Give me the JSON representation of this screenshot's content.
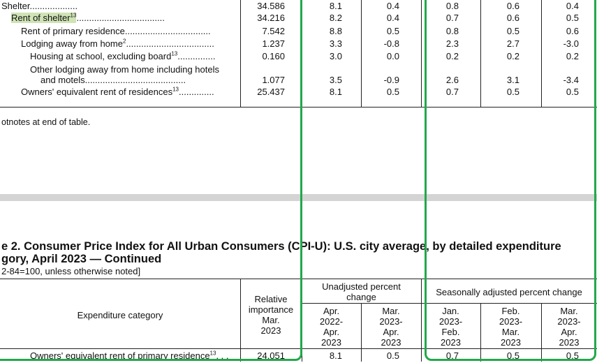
{
  "top_rows": [
    {
      "label": "Shelter",
      "dots": "...................",
      "relimp": "34.586",
      "ua1": "8.1",
      "ua2": "0.4",
      "sa1": "0.8",
      "sa2": "0.6",
      "sa3": "0.4"
    },
    {
      "label": "Rent of shelter",
      "sup": "13",
      "dots": "...................................",
      "relimp": "34.216",
      "ua1": "8.2",
      "ua2": "0.4",
      "sa1": "0.7",
      "sa2": "0.6",
      "sa3": "0.5"
    },
    {
      "label": "Rent of primary residence",
      "dots": "..................................",
      "relimp": "7.542",
      "ua1": "8.8",
      "ua2": "0.5",
      "sa1": "0.8",
      "sa2": "0.5",
      "sa3": "0.6"
    },
    {
      "label": "Lodging away from home",
      "sup": "2",
      "dots": "...................................",
      "relimp": "1.237",
      "ua1": "3.3",
      "ua2": "-0.8",
      "sa1": "2.3",
      "sa2": "2.7",
      "sa3": "-3.0"
    },
    {
      "label": "Housing at school, excluding board",
      "sup": "13",
      "dots": "...............",
      "relimp": "0.160",
      "ua1": "3.0",
      "ua2": "0.0",
      "sa1": "0.2",
      "sa2": "0.2",
      "sa3": "0.2"
    }
  ],
  "other_lodging": {
    "line1": "Other lodging away from home including hotels",
    "line2": "and motels",
    "dots": "........................................",
    "relimp": "1.077",
    "ua1": "3.5",
    "ua2": "-0.9",
    "sa1": "2.6",
    "sa2": "3.1",
    "sa3": "-3.4"
  },
  "owners_row": {
    "label": "Owners' equivalent rent of residences",
    "sup": "13",
    "dots": "..............",
    "relimp": "25.437",
    "ua1": "8.1",
    "ua2": "0.5",
    "sa1": "0.7",
    "sa2": "0.5",
    "sa3": "0.5"
  },
  "footnote_ref": "otnotes at end of table.",
  "table_title_line1": "e 2. Consumer Price Index for All Urban Consumers (CPI-U): U.S. city average, by detailed expenditure",
  "table_title_line2": "gory, April 2023 — Continued",
  "table_subtitle": "2-84=100, unless otherwise noted]",
  "header": {
    "category": "Expenditure category",
    "relimp": [
      "Relative",
      "importance",
      "Mar.",
      "2023"
    ],
    "unadjusted": [
      "Unadjusted percent",
      "change"
    ],
    "seasonal": "Seasonally adjusted percent change",
    "ua_cols": [
      [
        "Apr.",
        "2022-",
        "Apr.",
        "2023"
      ],
      [
        "Mar.",
        "2023-",
        "Apr.",
        "2023"
      ]
    ],
    "sa_cols": [
      [
        "Jan.",
        "2023-",
        "Feb.",
        "2023"
      ],
      [
        "Feb.",
        "2023-",
        "Mar.",
        "2023"
      ],
      [
        "Mar.",
        "2023-",
        "Apr.",
        "2023"
      ]
    ]
  },
  "bottom_row": {
    "label": "Owners' equivalent rent of primary residence",
    "sup": "13",
    "dots": ". . .",
    "relimp": "24.051",
    "ua1": "8.1",
    "ua2": "0.5",
    "sa1": "0.7",
    "sa2": "0.5",
    "sa3": "0.5"
  },
  "colors": {
    "highlight_box": "#22a84b",
    "separator": "#d4d4d4",
    "selection": "#cfe3b5"
  }
}
